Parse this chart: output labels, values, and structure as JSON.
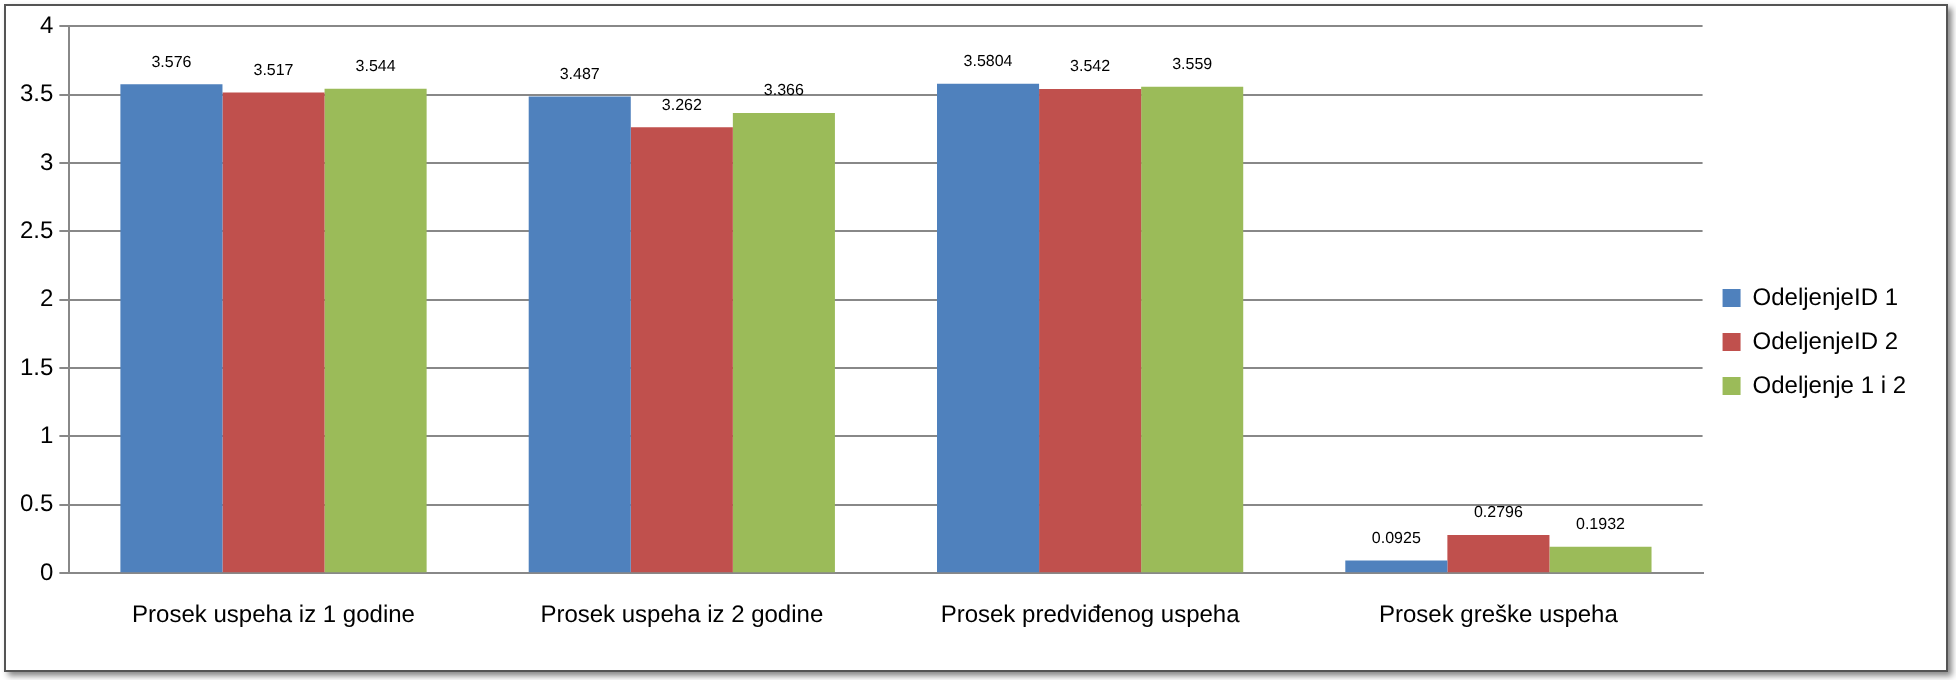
{
  "chart_data": {
    "type": "bar",
    "categories": [
      "Prosek uspeha iz 1 godine",
      "Prosek uspeha iz 2 godine",
      "Prosek predviđenog uspeha",
      "Prosek greške uspeha"
    ],
    "series": [
      {
        "name": "OdeljenjeID 1",
        "color": "#4f81bd",
        "values": [
          3.576,
          3.487,
          3.5804,
          0.0925
        ]
      },
      {
        "name": "OdeljenjeID 2",
        "color": "#c0504d",
        "values": [
          3.517,
          3.262,
          3.542,
          0.2796
        ]
      },
      {
        "name": "Odeljenje 1 i 2",
        "color": "#9bbb59",
        "values": [
          3.544,
          3.366,
          3.559,
          0.1932
        ]
      }
    ],
    "ylim": [
      0,
      4
    ],
    "yticks": [
      0,
      0.5,
      1,
      1.5,
      2,
      2.5,
      3,
      3.5,
      4
    ],
    "grid": "y",
    "legend": "right",
    "data_labels": true
  }
}
